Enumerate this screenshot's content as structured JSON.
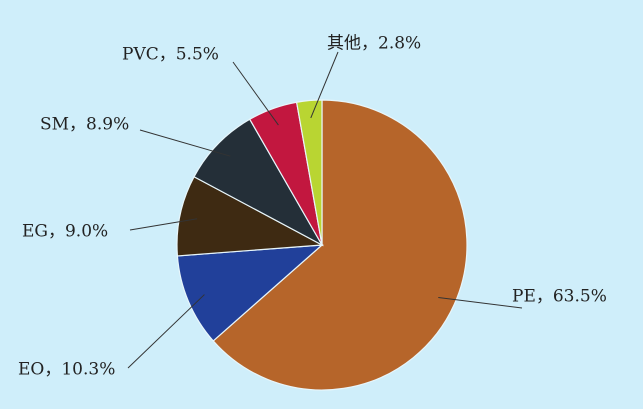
{
  "chart_data": {
    "type": "pie",
    "values": [
      63.5,
      10.3,
      9.0,
      8.9,
      5.5,
      2.8
    ],
    "value_labels": [
      "PE，63.5%",
      "EO，10.3%",
      "EG，9.0%",
      "SM，8.9%",
      "PVC，5.5%",
      "其他，2.8%"
    ],
    "colors": [
      "#b6652a",
      "#21409a",
      "#3e2a12",
      "#242f38",
      "#c2173f",
      "#b9d532"
    ]
  }
}
